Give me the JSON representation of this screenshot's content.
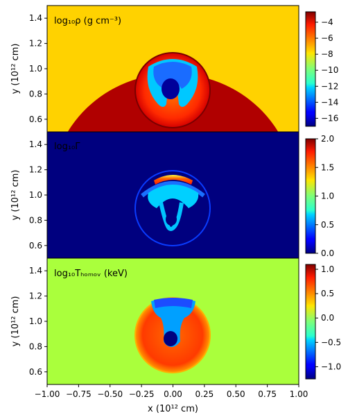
{
  "figure": {
    "xlabel": "x (10¹² cm)",
    "ylabel": "y (10¹² cm)"
  },
  "chart_data": [
    {
      "type": "heatmap",
      "title": "log₁₀ρ (g cm⁻³)",
      "title_color": "#000000",
      "xlim": [
        -1.0,
        1.0
      ],
      "ylim": [
        0.5,
        1.5
      ],
      "yticks": [
        0.6,
        0.8,
        1.0,
        1.2,
        1.4
      ],
      "ytick_labels": [
        "0.6",
        "0.8",
        "1.0",
        "1.2",
        "1.4"
      ],
      "xtick_labels": [],
      "colorbar_range": [
        -17,
        -2.7
      ],
      "colorbar_ticks": [
        -4,
        -6,
        -8,
        -10,
        -12,
        -14,
        -16
      ],
      "colorbar_tick_labels": [
        "−4",
        "−6",
        "−8",
        "−10",
        "−12",
        "−14",
        "−16"
      ],
      "background_color": "#ffd200",
      "colormap": "jet"
    },
    {
      "type": "heatmap",
      "title": "log₁₀Γ",
      "title_color": "#ffffff",
      "xlim": [
        -1.0,
        1.0
      ],
      "ylim": [
        0.5,
        1.5
      ],
      "yticks": [
        0.6,
        0.8,
        1.0,
        1.2,
        1.4
      ],
      "ytick_labels": [
        "0.6",
        "0.8",
        "1.0",
        "1.2",
        "1.4"
      ],
      "xtick_labels": [],
      "colorbar_range": [
        0.0,
        2.0
      ],
      "colorbar_ticks": [
        2.0,
        1.5,
        1.0,
        0.5,
        0.0
      ],
      "colorbar_tick_labels": [
        "2.0",
        "1.5",
        "1.0",
        "0.5",
        "0.0"
      ],
      "background_color": "#00007f",
      "colormap": "jet"
    },
    {
      "type": "heatmap",
      "title": "log₁₀Tₕₒₘₒᵥ (keV)",
      "title_color": "#000000",
      "xlim": [
        -1.0,
        1.0
      ],
      "ylim": [
        0.5,
        1.5
      ],
      "yticks": [
        0.6,
        0.8,
        1.0,
        1.2,
        1.4
      ],
      "ytick_labels": [
        "0.6",
        "0.8",
        "1.0",
        "1.2",
        "1.4"
      ],
      "xticks": [
        -1.0,
        -0.75,
        -0.5,
        -0.25,
        0.0,
        0.25,
        0.5,
        0.75,
        1.0
      ],
      "xtick_labels": [
        "−1.00",
        "−0.75",
        "−0.50",
        "−0.25",
        "0.00",
        "0.25",
        "0.50",
        "0.75",
        "1.00"
      ],
      "colorbar_range": [
        -1.25,
        1.1
      ],
      "colorbar_ticks": [
        1.0,
        0.5,
        0.0,
        -0.5,
        -1.0
      ],
      "colorbar_tick_labels": [
        "1.0",
        "0.5",
        "0.0",
        "−0.5",
        "−1.0"
      ],
      "background_color": "#aaff3c",
      "colormap": "jet"
    }
  ]
}
